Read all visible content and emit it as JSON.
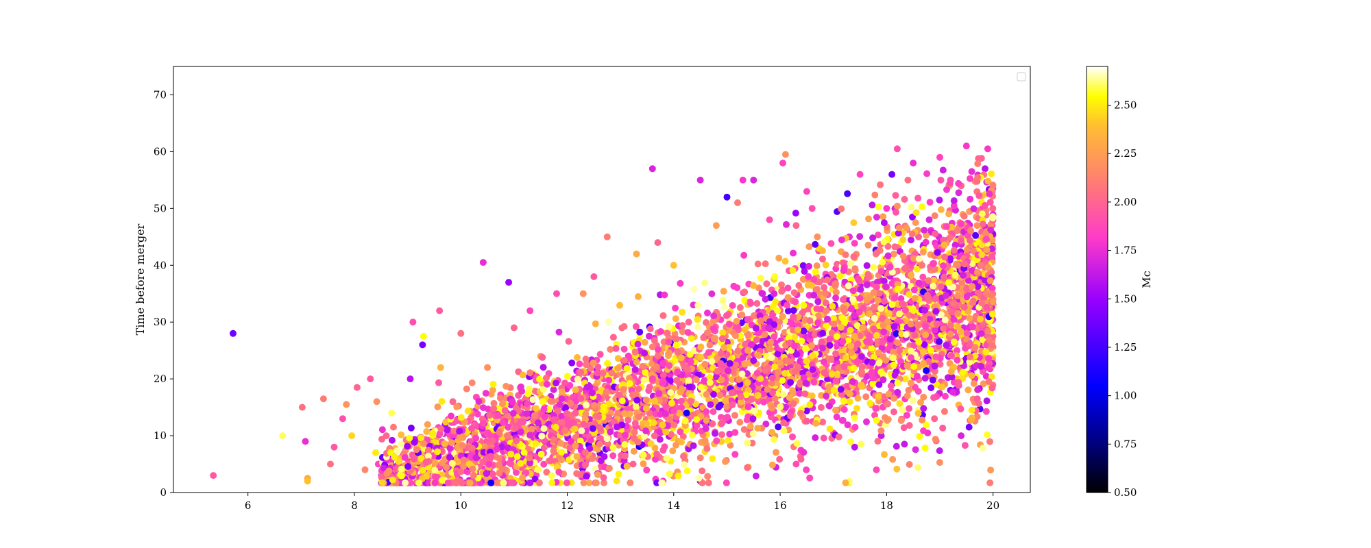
{
  "chart_data": {
    "type": "scatter",
    "title": "",
    "xlabel": "SNR",
    "ylabel": "Time before merger",
    "xlim": [
      4.6,
      20.7
    ],
    "ylim": [
      0,
      75
    ],
    "xticks": [
      6,
      8,
      10,
      12,
      14,
      16,
      18,
      20
    ],
    "yticks": [
      0,
      10,
      20,
      30,
      40,
      50,
      60,
      70
    ],
    "grid": false,
    "legend": {
      "placement": "top-right",
      "entries": []
    },
    "colorbar": {
      "label": "Mc",
      "colormap": "plasma",
      "range": [
        0.5,
        2.7
      ],
      "ticks": [
        "0.50",
        "0.75",
        "1.00",
        "1.25",
        "1.50",
        "1.75",
        "2.00",
        "2.25",
        "2.50"
      ]
    },
    "series": [
      {
        "x": [
          5.35,
          5.72,
          6.65,
          7.02,
          7.08,
          7.12,
          7.12,
          7.42,
          7.55,
          7.62,
          7.78,
          7.85,
          7.95,
          8.05,
          8.2,
          8.3,
          8.4,
          8.42,
          8.45,
          8.6,
          8.65,
          8.7,
          8.75,
          8.82,
          9.0,
          9.05,
          9.1,
          9.28,
          9.3,
          9.35,
          9.6,
          9.62,
          9.75,
          9.85,
          10.0,
          10.2,
          10.42,
          10.5,
          10.9,
          11.0,
          11.3,
          11.5,
          11.8,
          12.3,
          12.5,
          12.75,
          13.3,
          13.6,
          13.7,
          14.0,
          14.5,
          14.8,
          15.0,
          15.2,
          15.3,
          15.5,
          15.6,
          15.8,
          16.05,
          16.1,
          16.3,
          16.5,
          16.6,
          16.7,
          17.0,
          17.3,
          17.5,
          17.8,
          18.0,
          18.1,
          18.2,
          18.4,
          18.5,
          18.6,
          18.8,
          19.0,
          19.2,
          19.4,
          19.5,
          19.6,
          19.7,
          19.8,
          19.85,
          19.9,
          19.95,
          19.95,
          19.55,
          19.4,
          19.2,
          18.9,
          17.9,
          17.4,
          16.6,
          16.3,
          15.4,
          14.5,
          13.8
        ],
        "y": [
          3,
          28,
          10,
          15,
          9,
          2.5,
          2,
          16.5,
          5,
          8,
          13,
          15.5,
          10,
          18.5,
          4,
          20,
          7,
          16,
          5,
          10,
          3,
          14,
          2,
          5,
          9,
          20,
          30,
          26,
          27.5,
          5,
          32,
          22,
          11,
          16,
          28,
          2,
          40.5,
          22,
          37,
          29,
          32,
          24,
          35,
          35,
          38,
          45,
          42,
          57,
          44,
          40,
          55,
          47,
          52,
          51,
          55,
          55,
          36,
          48,
          58,
          59.5,
          47,
          53,
          50,
          45,
          38,
          45,
          56,
          42,
          50,
          56,
          60.5,
          55,
          58,
          45,
          48,
          59,
          55,
          54,
          61,
          56.5,
          47,
          50,
          57,
          60.5,
          38,
          24,
          11.5,
          10,
          18,
          13,
          10,
          8,
          17,
          5,
          4.5,
          2,
          2
        ],
        "c": [
          1.95,
          1.38,
          2.6,
          2.05,
          1.75,
          2.3,
          2.4,
          2.1,
          2.05,
          1.95,
          1.9,
          2.2,
          2.45,
          2.0,
          2.15,
          1.95,
          2.5,
          2.2,
          1.85,
          2.0,
          2.3,
          2.6,
          1.9,
          2.1,
          2.5,
          1.6,
          1.9,
          1.4,
          2.55,
          2.2,
          1.95,
          2.35,
          2.15,
          2.0,
          2.05,
          2.3,
          1.75,
          2.2,
          1.5,
          2.0,
          1.85,
          2.25,
          1.9,
          2.2,
          1.95,
          2.1,
          2.3,
          1.7,
          2.0,
          2.4,
          1.7,
          2.25,
          1.25,
          2.1,
          1.8,
          1.7,
          2.2,
          1.9,
          1.85,
          2.2,
          2.0,
          1.85,
          1.9,
          2.2,
          2.0,
          1.75,
          1.85,
          2.1,
          1.8,
          1.4,
          1.9,
          2.05,
          1.75,
          1.95,
          1.7,
          1.85,
          1.9,
          2.0,
          1.8,
          1.75,
          2.2,
          1.85,
          1.6,
          1.8,
          1.7,
          1.95,
          1.4,
          1.7,
          1.5,
          2.0,
          1.65,
          1.6,
          2.4,
          1.9,
          2.3,
          1.55,
          1.8
        ]
      }
    ]
  }
}
